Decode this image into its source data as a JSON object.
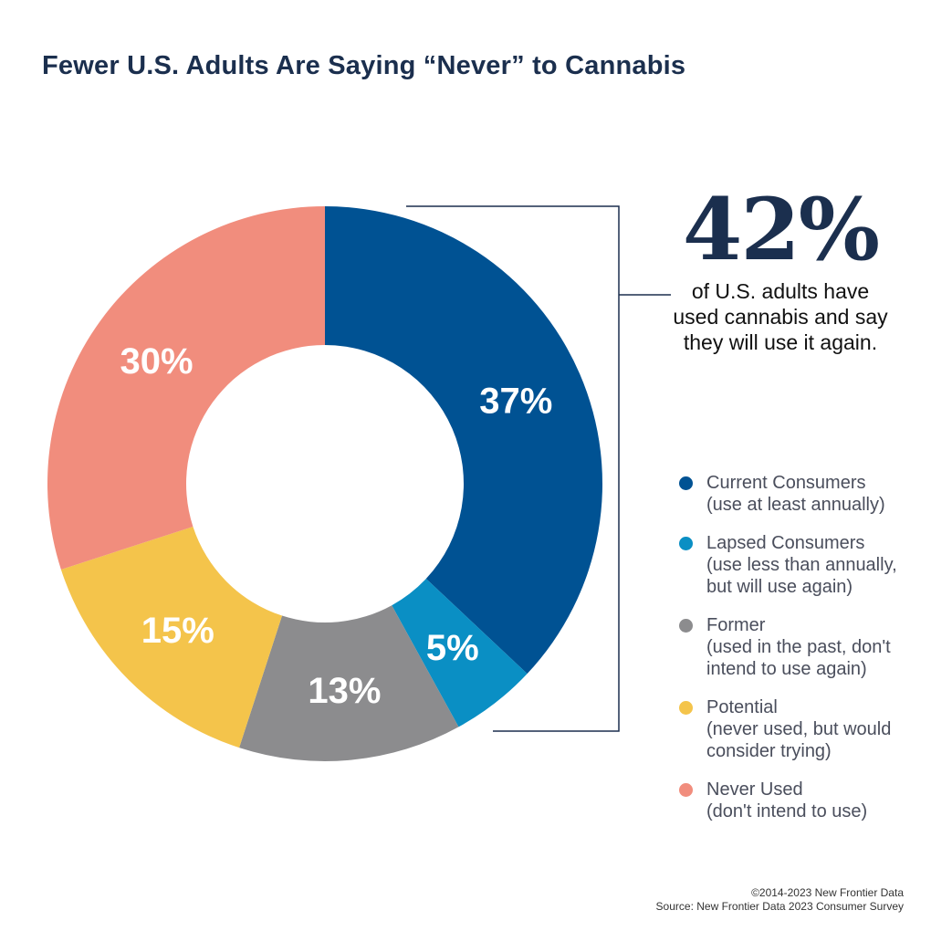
{
  "title": "Fewer U.S. Adults Are Saying “Never” to Cannabis",
  "callout": {
    "value": "42%",
    "lines": [
      "of U.S. adults have",
      "used cannabis and say",
      "they will use it again."
    ]
  },
  "chart_data": {
    "type": "pie",
    "donut": true,
    "title": "Fewer U.S. Adults Are Saying “Never” to Cannabis",
    "categories": [
      "Current Consumers",
      "Lapsed Consumers",
      "Former",
      "Potential",
      "Never Used"
    ],
    "values": [
      37,
      5,
      13,
      15,
      30
    ],
    "labels": [
      "37%",
      "5%",
      "13%",
      "15%",
      "30%"
    ],
    "colors": [
      "#005293",
      "#0a8fc4",
      "#8c8c8e",
      "#f4c44b",
      "#f18d7d"
    ],
    "legend_position": "right"
  },
  "legend": [
    {
      "name": "Current Consumers",
      "desc": [
        "(use at least annually)"
      ],
      "color": "#005293"
    },
    {
      "name": "Lapsed Consumers",
      "desc": [
        "(use less than annually,",
        "but will use again)"
      ],
      "color": "#0a8fc4"
    },
    {
      "name": "Former",
      "desc": [
        "(used in the past, don't",
        "intend to use again)"
      ],
      "color": "#8c8c8e"
    },
    {
      "name": "Potential",
      "desc": [
        "(never used, but would",
        "consider trying)"
      ],
      "color": "#f4c44b"
    },
    {
      "name": "Never Used",
      "desc": [
        "(don't intend to use)"
      ],
      "color": "#f18d7d"
    }
  ],
  "footer": {
    "copyright": "©2014-2023  New Frontier Data",
    "source": "Source: New Frontier Data 2023 Consumer Survey"
  }
}
